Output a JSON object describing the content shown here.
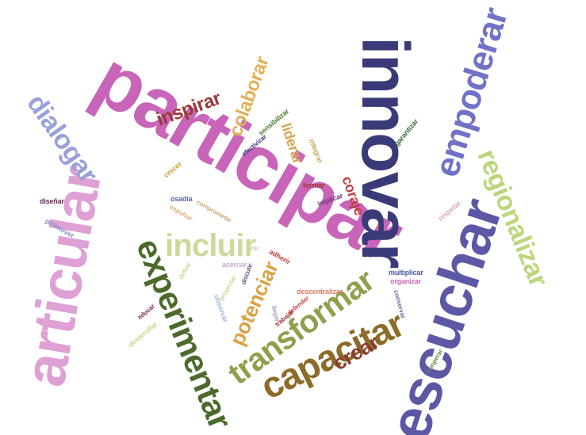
{
  "words": [
    {
      "text": "participar",
      "color": "#c865b8"
    },
    {
      "text": "innovar",
      "color": "#3b3a78"
    },
    {
      "text": "articular",
      "color": "#dea0d5"
    },
    {
      "text": "escuchar",
      "color": "#5c58a6"
    },
    {
      "text": "empoderar",
      "color": "#7171c8"
    },
    {
      "text": "experimentar",
      "color": "#4b6a2c"
    },
    {
      "text": "transformar",
      "color": "#8ea04c"
    },
    {
      "text": "capacitar",
      "color": "#8c6c28"
    },
    {
      "text": "dialogar",
      "color": "#9aa0d8"
    },
    {
      "text": "regionalizar",
      "color": "#bcd67a"
    },
    {
      "text": "incluir",
      "color": "#cdd99c"
    },
    {
      "text": "inspirar",
      "color": "#9a3838"
    },
    {
      "text": "colaborar",
      "color": "#e2b055"
    },
    {
      "text": "potenciar",
      "color": "#d9a244"
    },
    {
      "text": "crear",
      "color": "#8a3c2c"
    },
    {
      "text": "liderar",
      "color": "#d8a650"
    },
    {
      "text": "coraje",
      "color": "#c14040"
    },
    {
      "text": "sensibilizar",
      "color": "#4f7c2f"
    },
    {
      "text": "efectivizar",
      "color": "#3e3b7d"
    },
    {
      "text": "integrar",
      "color": "#c8a850"
    },
    {
      "text": "garantizar",
      "color": "#3b6b3b"
    },
    {
      "text": "respetar",
      "color": "#e0a4c8"
    },
    {
      "text": "crecer",
      "color": "#c8a030"
    },
    {
      "text": "formar",
      "color": "#a03838"
    },
    {
      "text": "implicar",
      "color": "#6a3a7a"
    },
    {
      "text": "osadía",
      "color": "#5a68b0"
    },
    {
      "text": "diseñar",
      "color": "#6a2a5a"
    },
    {
      "text": "promover",
      "color": "#8a90c8"
    },
    {
      "text": "impulsar",
      "color": "#d8b078"
    },
    {
      "text": "comprometer",
      "color": "#d0a878"
    },
    {
      "text": "adherir",
      "color": "#c04848"
    },
    {
      "text": "acercar",
      "color": "#c8a8d8"
    },
    {
      "text": "discutir",
      "color": "#6a4a80"
    },
    {
      "text": "multiplicar",
      "color": "#4a5aa0"
    },
    {
      "text": "organizar",
      "color": "#c868b8"
    },
    {
      "text": "descentralizar",
      "color": "#e07868"
    },
    {
      "text": "defender",
      "color": "#c84848"
    },
    {
      "text": "conservar",
      "color": "#7a6aa0"
    },
    {
      "text": "trabajar",
      "color": "#a03838"
    },
    {
      "text": "llegar",
      "color": "#b0a0c8"
    },
    {
      "text": "proyectar",
      "color": "#c8d890"
    },
    {
      "text": "observar",
      "color": "#a8b8e0"
    },
    {
      "text": "educar",
      "color": "#7a2a5a"
    },
    {
      "text": "desarrollar",
      "color": "#c8d890"
    },
    {
      "text": "cooperar",
      "color": "#6a8a4a"
    },
    {
      "text": "definir",
      "color": "#c8d890"
    },
    {
      "text": "unir",
      "color": "#e0c8a0"
    }
  ]
}
